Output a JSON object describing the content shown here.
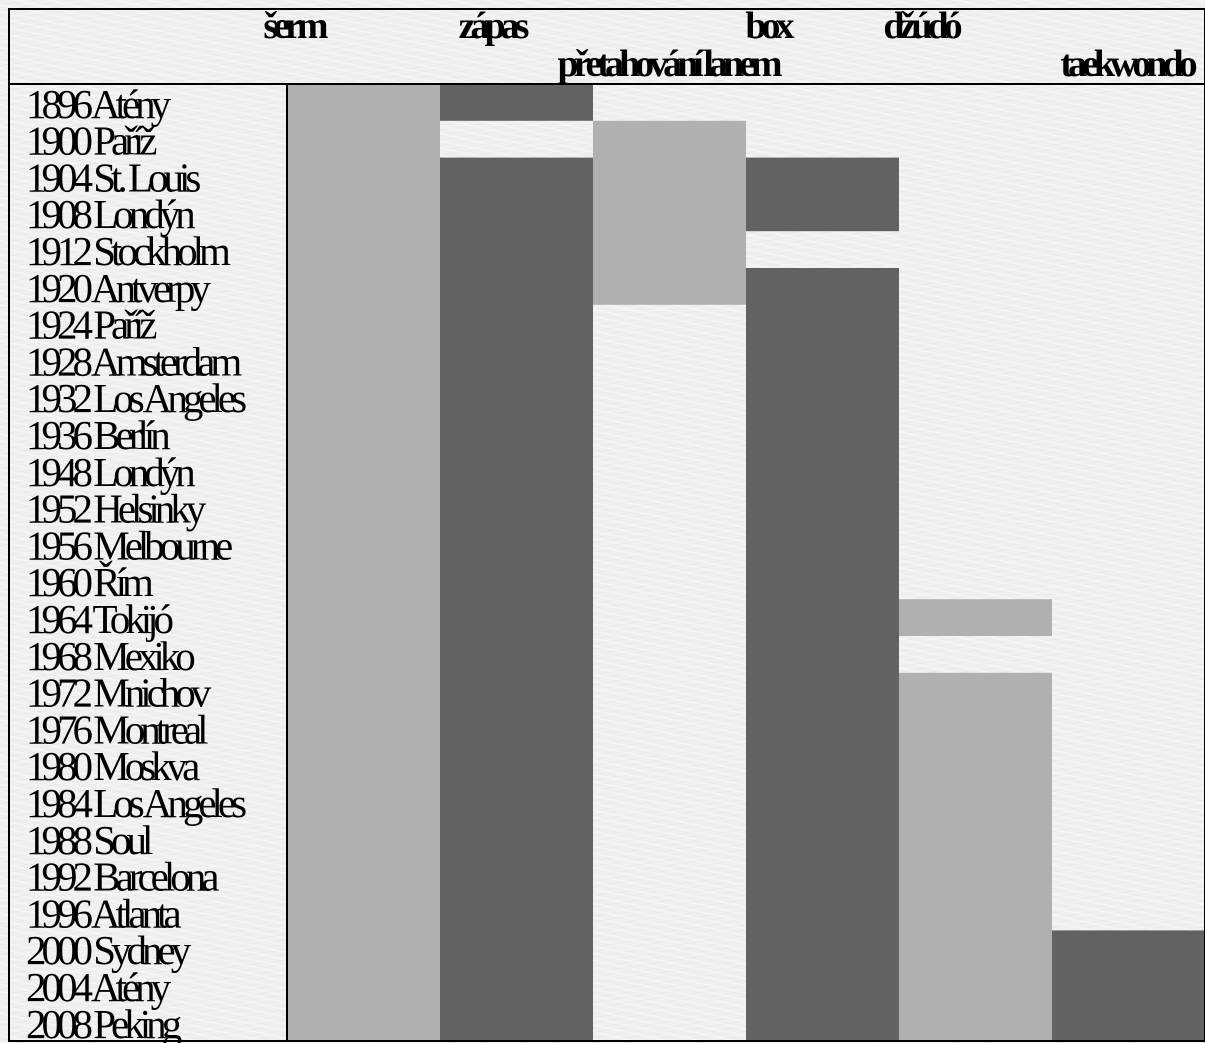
{
  "chart_data": {
    "type": "table",
    "rows": [
      "1896 Atény",
      "1900 Paříž",
      "1904 St. Louis",
      "1908 Londýn",
      "1912 Stockholm",
      "1920 Antverpy",
      "1924 Paříž",
      "1928 Amsterdam",
      "1932 Los Angeles",
      "1936 Berlín",
      "1948 Londýn",
      "1952 Helsinky",
      "1956 Melbourne",
      "1960 Řím",
      "1964 Tokijó",
      "1968 Mexiko",
      "1972 Mnichov",
      "1976 Montreal",
      "1980 Moskva",
      "1984 Los Angeles",
      "1988 Soul",
      "1992 Barcelona",
      "1996 Atlanta",
      "2000 Sydney",
      "2004 Atény",
      "2008 Peking"
    ],
    "columns": [
      {
        "label": "šerm",
        "color": "#b0b0b0",
        "present": [
          [
            0,
            25
          ]
        ]
      },
      {
        "label": "zápas",
        "color": "#626262",
        "present": [
          [
            0,
            0
          ],
          [
            2,
            25
          ]
        ]
      },
      {
        "label": "přetahování lanem",
        "color": "#b0b0b0",
        "present": [
          [
            1,
            5
          ]
        ]
      },
      {
        "label": "box",
        "color": "#626262",
        "present": [
          [
            2,
            3
          ],
          [
            5,
            25
          ]
        ]
      },
      {
        "label": "džúdó",
        "color": "#b0b0b0",
        "present": [
          [
            14,
            14
          ],
          [
            16,
            25
          ]
        ]
      },
      {
        "label": "taekwondo",
        "color": "#626262",
        "present": [
          [
            23,
            25
          ]
        ]
      }
    ]
  }
}
